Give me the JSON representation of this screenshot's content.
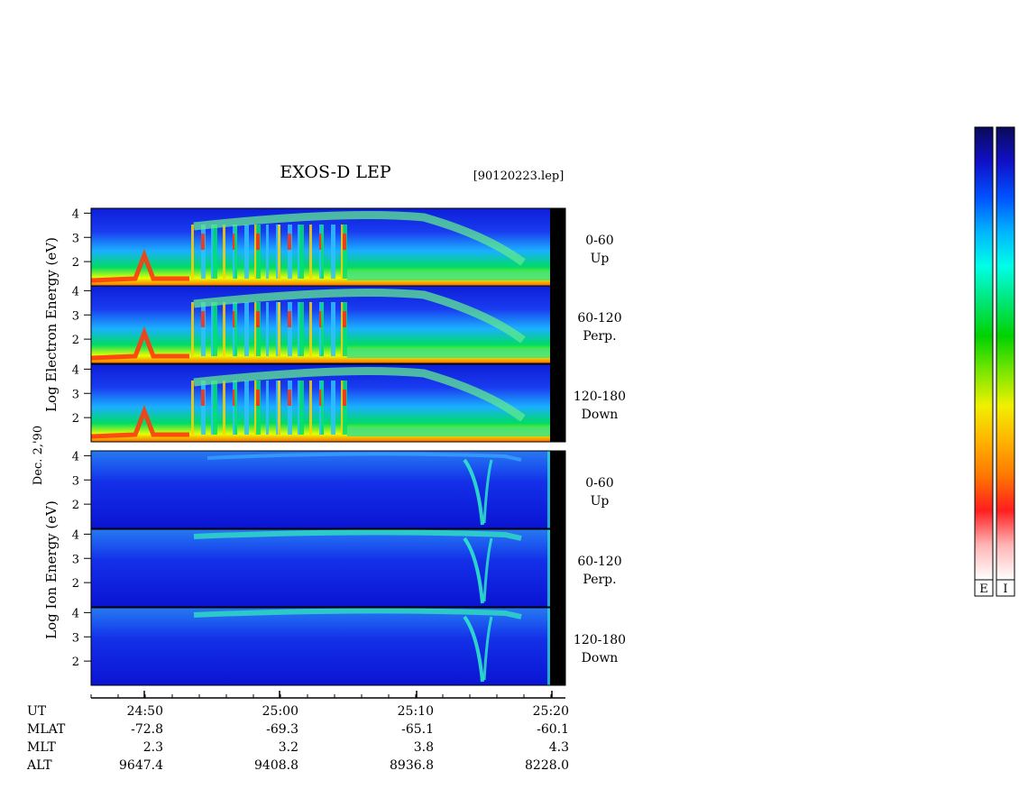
{
  "title": "EXOS-D LEP",
  "file_label": "[90120223.lep]",
  "date_label": "Dec. 2,'90",
  "chart_data": {
    "type": "heatmap",
    "instrument": "EXOS-D LEP",
    "y_scale": "log",
    "ylim": [
      1,
      4.2
    ],
    "y_ticks": [
      "4",
      "3",
      "2"
    ],
    "bottom_y_ticks": [
      "4",
      "3",
      "2"
    ],
    "x_ticks": [
      "24:50",
      "25:00",
      "25:10",
      "25:20"
    ],
    "groups": [
      {
        "id": "electron",
        "ylabel": "Log Electron Energy (eV)",
        "panels": [
          {
            "angle": "0-60",
            "direction": "Up"
          },
          {
            "angle": "60-120",
            "direction": "Perp."
          },
          {
            "angle": "120-180",
            "direction": "Down"
          }
        ]
      },
      {
        "id": "ion",
        "ylabel": "Log Ion Energy (eV)",
        "panels": [
          {
            "angle": "0-60",
            "direction": "Up"
          },
          {
            "angle": "60-120",
            "direction": "Perp."
          },
          {
            "angle": "120-180",
            "direction": "Down"
          }
        ]
      }
    ],
    "orbit_table": {
      "rows": [
        {
          "label": "UT",
          "values": [
            "24:50",
            "25:00",
            "25:10",
            "25:20"
          ]
        },
        {
          "label": "MLAT",
          "values": [
            "-72.8",
            "-69.3",
            "-65.1",
            "-60.1"
          ]
        },
        {
          "label": "MLT",
          "values": [
            "2.3",
            "3.2",
            "3.8",
            "4.3"
          ]
        },
        {
          "label": "ALT",
          "values": [
            "9647.4",
            "9408.8",
            "8936.8",
            "8228.0"
          ]
        }
      ]
    },
    "colorbar": {
      "labels": [
        "E",
        "I"
      ],
      "colors": [
        "#0a0a5a",
        "#1010c8",
        "#0050ff",
        "#00b4ff",
        "#00ffe6",
        "#00e676",
        "#00d200",
        "#78e600",
        "#f0f000",
        "#ffb400",
        "#ff7800",
        "#ff1e1e",
        "#ffb4b4",
        "#ffffff"
      ]
    }
  }
}
